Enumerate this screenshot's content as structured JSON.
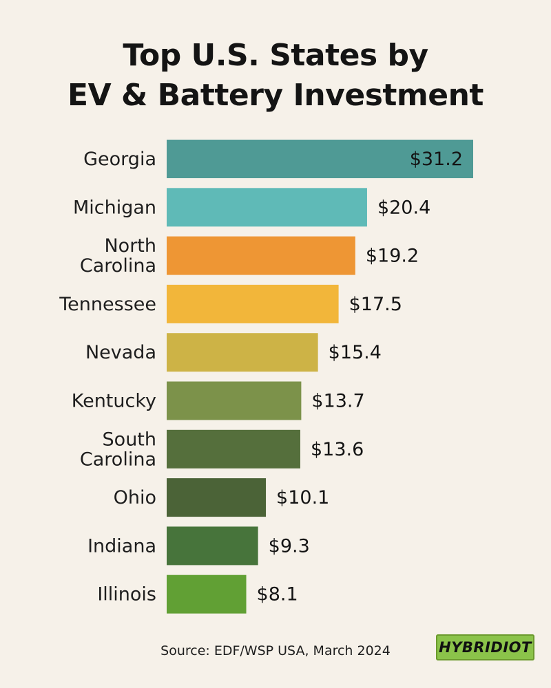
{
  "title_line1": "Top U.S. States by",
  "title_line2": "EV & Battery Investment",
  "source": "Source: EDF/WSP USA, March 2024",
  "logo_text": "HYBRIDIOT",
  "chart_data": {
    "type": "bar",
    "orientation": "horizontal",
    "categories": [
      "Georgia",
      "Michigan",
      "North Carolina",
      "Tennessee",
      "Nevada",
      "Kentucky",
      "South Carolina",
      "Ohio",
      "Indiana",
      "Illinois"
    ],
    "category_lines": [
      [
        "Georgia"
      ],
      [
        "Michigan"
      ],
      [
        "North",
        "Carolina"
      ],
      [
        "Tennessee"
      ],
      [
        "Nevada"
      ],
      [
        "Kentucky"
      ],
      [
        "South",
        "Carolina"
      ],
      [
        "Ohio"
      ],
      [
        "Indiana"
      ],
      [
        "Illinois"
      ]
    ],
    "values": [
      31.2,
      20.4,
      19.2,
      17.5,
      15.4,
      13.7,
      13.6,
      10.1,
      9.3,
      8.1
    ],
    "value_labels": [
      "$31.2",
      "$20.4",
      "$19.2",
      "$17.5",
      "$15.4",
      "$13.7",
      "$13.6",
      "$10.1",
      "$9.3",
      "$8.1"
    ],
    "bar_colors": [
      "#4f9a95",
      "#5fbab7",
      "#ee9634",
      "#f2b63a",
      "#cdb346",
      "#7c924a",
      "#556f3c",
      "#4b6337",
      "#47743b",
      "#61a034"
    ],
    "first_label_inside": true,
    "xlim": [
      0,
      31.2
    ],
    "grid": false,
    "legend": "none"
  }
}
